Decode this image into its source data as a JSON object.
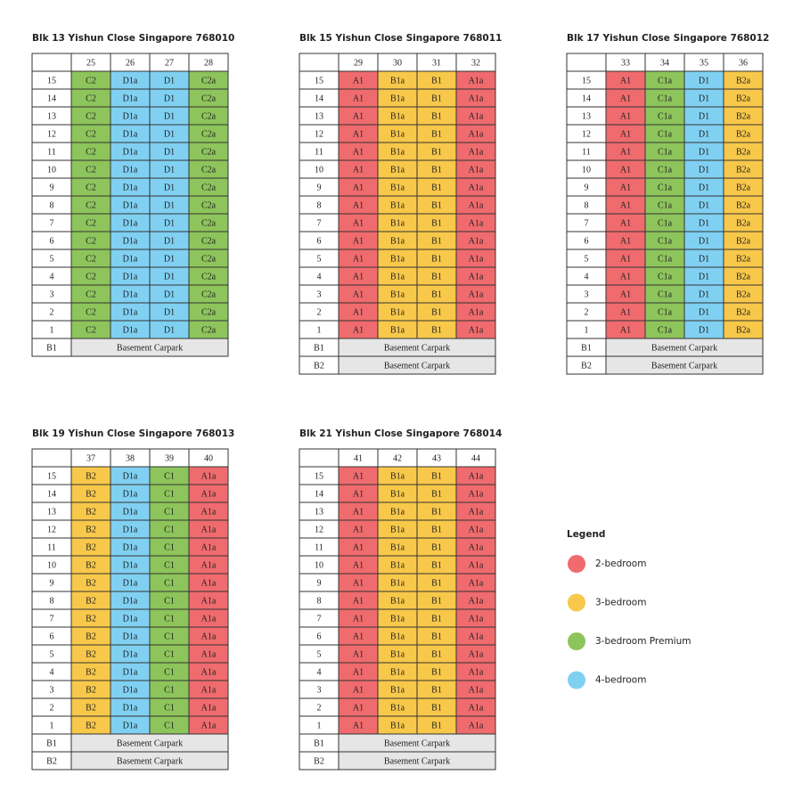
{
  "blocks": [
    {
      "title": "Blk 13 Yishun Close Singapore 768010",
      "units": [
        {
          "number": "25",
          "type": "C2",
          "category": "3-bedroom Premium"
        },
        {
          "number": "26",
          "type": "D1a",
          "category": "4-bedroom"
        },
        {
          "number": "27",
          "type": "D1",
          "category": "4-bedroom"
        },
        {
          "number": "28",
          "type": "C2a",
          "category": "3-bedroom Premium"
        }
      ],
      "floors": [
        "15",
        "14",
        "13",
        "12",
        "11",
        "10",
        "9",
        "8",
        "7",
        "6",
        "5",
        "4",
        "3",
        "2",
        "1"
      ],
      "basements": [
        {
          "level": "B1",
          "label": "Basement Carpark"
        }
      ]
    },
    {
      "title": "Blk 15 Yishun Close Singapore 768011",
      "units": [
        {
          "number": "29",
          "type": "A1",
          "category": "2-bedroom"
        },
        {
          "number": "30",
          "type": "B1a",
          "category": "3-bedroom"
        },
        {
          "number": "31",
          "type": "B1",
          "category": "3-bedroom"
        },
        {
          "number": "32",
          "type": "A1a",
          "category": "2-bedroom"
        }
      ],
      "floors": [
        "15",
        "14",
        "13",
        "12",
        "11",
        "10",
        "9",
        "8",
        "7",
        "6",
        "5",
        "4",
        "3",
        "2",
        "1"
      ],
      "basements": [
        {
          "level": "B1",
          "label": "Basement Carpark"
        },
        {
          "level": "B2",
          "label": "Basement Carpark"
        }
      ]
    },
    {
      "title": "Blk 17 Yishun Close Singapore 768012",
      "units": [
        {
          "number": "33",
          "type": "A1",
          "category": "2-bedroom"
        },
        {
          "number": "34",
          "type": "C1a",
          "category": "3-bedroom Premium"
        },
        {
          "number": "35",
          "type": "D1",
          "category": "4-bedroom"
        },
        {
          "number": "36",
          "type": "B2a",
          "category": "3-bedroom"
        }
      ],
      "floors": [
        "15",
        "14",
        "13",
        "12",
        "11",
        "10",
        "9",
        "8",
        "7",
        "6",
        "5",
        "4",
        "3",
        "2",
        "1"
      ],
      "basements": [
        {
          "level": "B1",
          "label": "Basement Carpark"
        },
        {
          "level": "B2",
          "label": "Basement Carpark"
        }
      ]
    },
    {
      "title": "Blk 19 Yishun Close Singapore 768013",
      "units": [
        {
          "number": "37",
          "type": "B2",
          "category": "3-bedroom"
        },
        {
          "number": "38",
          "type": "D1a",
          "category": "4-bedroom"
        },
        {
          "number": "39",
          "type": "C1",
          "category": "3-bedroom Premium"
        },
        {
          "number": "40",
          "type": "A1a",
          "category": "2-bedroom"
        }
      ],
      "floors": [
        "15",
        "14",
        "13",
        "12",
        "11",
        "10",
        "9",
        "8",
        "7",
        "6",
        "5",
        "4",
        "3",
        "2",
        "1"
      ],
      "basements": [
        {
          "level": "B1",
          "label": "Basement Carpark"
        },
        {
          "level": "B2",
          "label": "Basement Carpark"
        }
      ]
    },
    {
      "title": "Blk 21 Yishun Close Singapore 768014",
      "units": [
        {
          "number": "41",
          "type": "A1",
          "category": "2-bedroom"
        },
        {
          "number": "42",
          "type": "B1a",
          "category": "3-bedroom"
        },
        {
          "number": "43",
          "type": "B1",
          "category": "3-bedroom"
        },
        {
          "number": "44",
          "type": "A1a",
          "category": "2-bedroom"
        }
      ],
      "floors": [
        "15",
        "14",
        "13",
        "12",
        "11",
        "10",
        "9",
        "8",
        "7",
        "6",
        "5",
        "4",
        "3",
        "2",
        "1"
      ],
      "basements": [
        {
          "level": "B1",
          "label": "Basement Carpark"
        },
        {
          "level": "B2",
          "label": "Basement Carpark"
        }
      ]
    }
  ],
  "legend": {
    "title": "Legend",
    "items": [
      {
        "label": "2-bedroom",
        "color": "#ef6b6e"
      },
      {
        "label": "3-bedroom",
        "color": "#f8c84a"
      },
      {
        "label": "3-bedroom Premium",
        "color": "#8dc45b"
      },
      {
        "label": "4-bedroom",
        "color": "#80d0f2"
      }
    ]
  }
}
